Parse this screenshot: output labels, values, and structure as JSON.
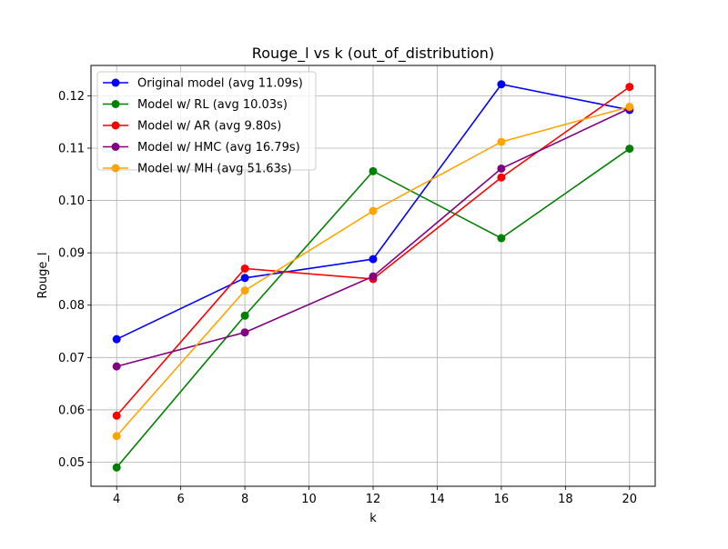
{
  "chart_data": {
    "type": "line",
    "title": "Rouge_l vs k (out_of_distribution)",
    "xlabel": "k",
    "ylabel": "Rouge_l",
    "x": [
      4,
      8,
      12,
      16,
      20
    ],
    "xlim": [
      3.2,
      20.8
    ],
    "ylim": [
      0.0454,
      0.1258
    ],
    "xticks": [
      4,
      6,
      8,
      10,
      12,
      14,
      16,
      18,
      20
    ],
    "yticks": [
      0.05,
      0.06,
      0.07,
      0.08,
      0.09,
      0.1,
      0.11,
      0.12
    ],
    "ytick_labels": [
      "0.05",
      "0.06",
      "0.07",
      "0.08",
      "0.09",
      "0.10",
      "0.11",
      "0.12"
    ],
    "grid": true,
    "legend_position": "upper-left",
    "series": [
      {
        "name": "Original model (avg 11.09s)",
        "color": "#0000ff",
        "values": [
          0.0735,
          0.0852,
          0.0888,
          0.1222,
          0.1173
        ]
      },
      {
        "name": "Model w/ RL (avg 10.03s)",
        "color": "#008000",
        "values": [
          0.049,
          0.078,
          0.1056,
          0.0928,
          0.1099
        ]
      },
      {
        "name": "Model w/ AR (avg 9.80s)",
        "color": "#ff0000",
        "values": [
          0.0589,
          0.087,
          0.085,
          0.1044,
          0.1217
        ]
      },
      {
        "name": "Model w/ HMC (avg 16.79s)",
        "color": "#800080",
        "values": [
          0.0683,
          0.0748,
          0.0855,
          0.1061,
          0.1176
        ]
      },
      {
        "name": "Model w/ MH (avg 51.63s)",
        "color": "#ffa500",
        "values": [
          0.055,
          0.0828,
          0.098,
          0.1112,
          0.1179
        ]
      }
    ]
  }
}
